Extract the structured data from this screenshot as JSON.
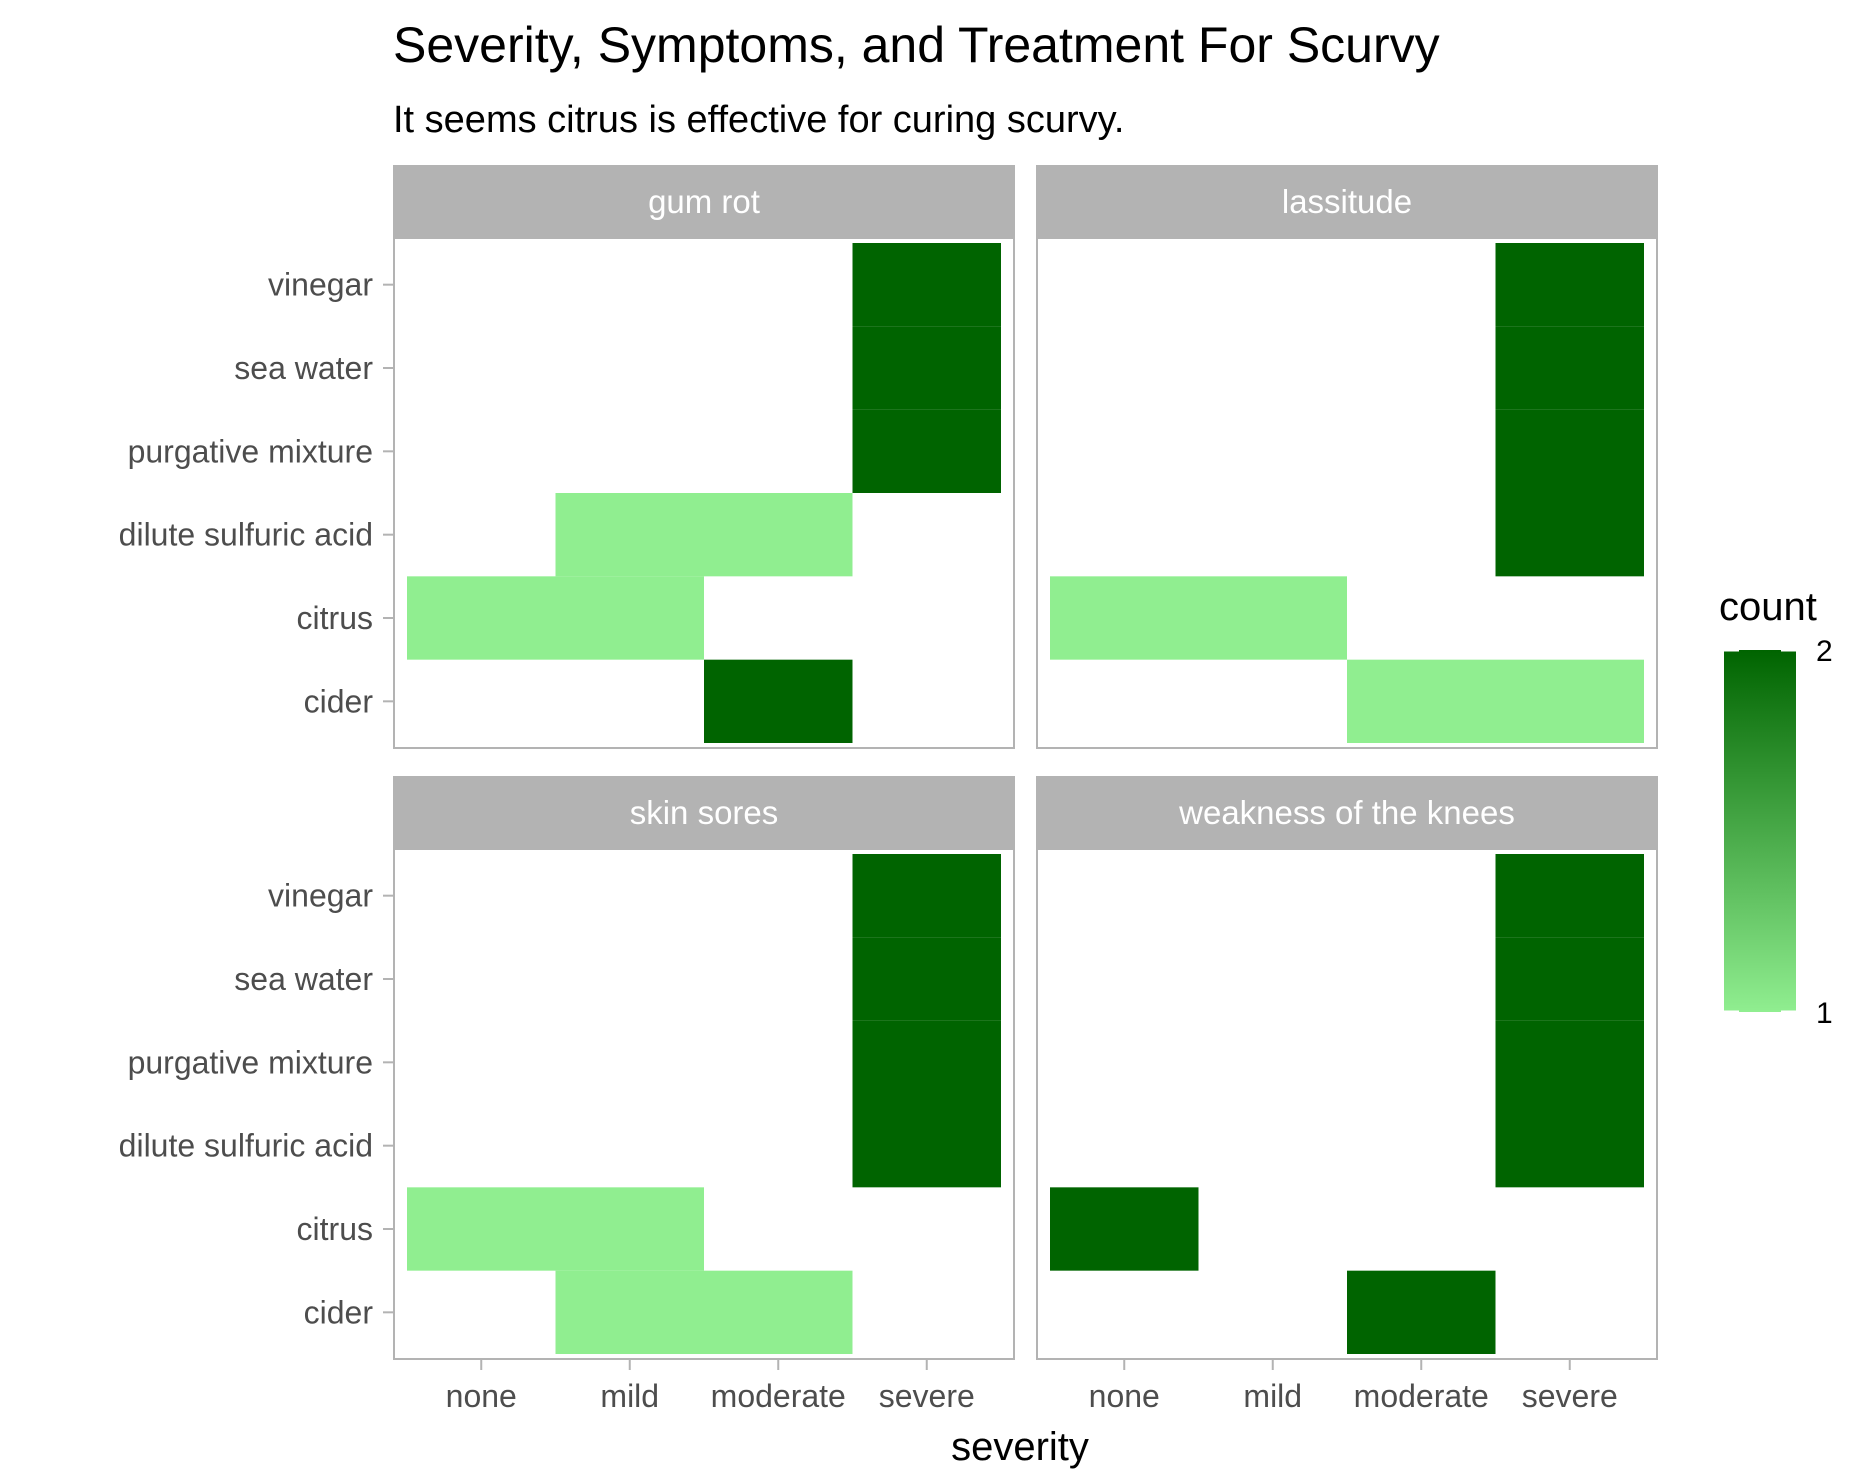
{
  "chart_data": {
    "type": "heatmap",
    "title": "Severity, Symptoms, and Treatment For Scurvy",
    "subtitle": "It seems citrus is effective for curing scurvy.",
    "xlabel": "severity",
    "ylabel": "",
    "x_categories": [
      "none",
      "mild",
      "moderate",
      "severe"
    ],
    "y_categories": [
      "cider",
      "citrus",
      "dilute sulfuric acid",
      "purgative mixture",
      "sea water",
      "vinegar"
    ],
    "facets": [
      {
        "name": "gum rot",
        "cells": [
          {
            "treatment": "vinegar",
            "severity": "severe",
            "count": 2
          },
          {
            "treatment": "sea water",
            "severity": "severe",
            "count": 2
          },
          {
            "treatment": "purgative mixture",
            "severity": "severe",
            "count": 2
          },
          {
            "treatment": "dilute sulfuric acid",
            "severity": "mild",
            "count": 1
          },
          {
            "treatment": "dilute sulfuric acid",
            "severity": "moderate",
            "count": 1
          },
          {
            "treatment": "citrus",
            "severity": "none",
            "count": 1
          },
          {
            "treatment": "citrus",
            "severity": "mild",
            "count": 1
          },
          {
            "treatment": "cider",
            "severity": "moderate",
            "count": 2
          }
        ]
      },
      {
        "name": "lassitude",
        "cells": [
          {
            "treatment": "vinegar",
            "severity": "severe",
            "count": 2
          },
          {
            "treatment": "sea water",
            "severity": "severe",
            "count": 2
          },
          {
            "treatment": "purgative mixture",
            "severity": "severe",
            "count": 2
          },
          {
            "treatment": "dilute sulfuric acid",
            "severity": "severe",
            "count": 2
          },
          {
            "treatment": "citrus",
            "severity": "none",
            "count": 1
          },
          {
            "treatment": "citrus",
            "severity": "mild",
            "count": 1
          },
          {
            "treatment": "cider",
            "severity": "moderate",
            "count": 1
          },
          {
            "treatment": "cider",
            "severity": "severe",
            "count": 1
          }
        ]
      },
      {
        "name": "skin sores",
        "cells": [
          {
            "treatment": "vinegar",
            "severity": "severe",
            "count": 2
          },
          {
            "treatment": "sea water",
            "severity": "severe",
            "count": 2
          },
          {
            "treatment": "purgative mixture",
            "severity": "severe",
            "count": 2
          },
          {
            "treatment": "dilute sulfuric acid",
            "severity": "severe",
            "count": 2
          },
          {
            "treatment": "citrus",
            "severity": "none",
            "count": 1
          },
          {
            "treatment": "citrus",
            "severity": "mild",
            "count": 1
          },
          {
            "treatment": "cider",
            "severity": "mild",
            "count": 1
          },
          {
            "treatment": "cider",
            "severity": "moderate",
            "count": 1
          }
        ]
      },
      {
        "name": "weakness of the knees",
        "cells": [
          {
            "treatment": "vinegar",
            "severity": "severe",
            "count": 2
          },
          {
            "treatment": "sea water",
            "severity": "severe",
            "count": 2
          },
          {
            "treatment": "purgative mixture",
            "severity": "severe",
            "count": 2
          },
          {
            "treatment": "dilute sulfuric acid",
            "severity": "severe",
            "count": 2
          },
          {
            "treatment": "citrus",
            "severity": "none",
            "count": 2
          },
          {
            "treatment": "cider",
            "severity": "moderate",
            "count": 2
          }
        ]
      }
    ],
    "legend": {
      "title": "count",
      "min": 1,
      "max": 2,
      "ticks": [
        "1",
        "2"
      ],
      "low_color": "#90ee90",
      "high_color": "#006400",
      "placement": "right"
    },
    "grid": false
  }
}
